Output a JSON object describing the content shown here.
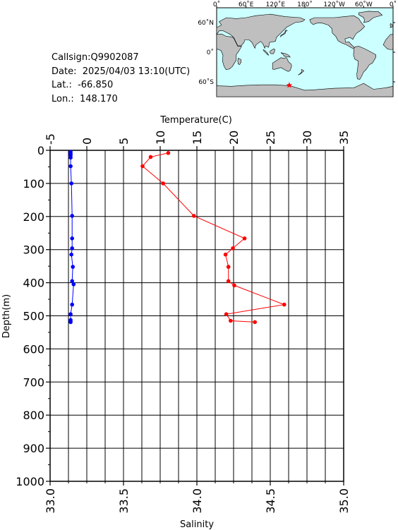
{
  "station": {
    "callsign_label": "Callsign:",
    "callsign": "Q9902087",
    "date_label": "Date:",
    "date": "2025/04/03 13:10(UTC)",
    "lat_label": "Lat.:",
    "lat": "-66.850",
    "lon_label": "Lon.:",
    "lon": "148.170"
  },
  "map": {
    "top_labels": [
      "0˚",
      "60˚E",
      "120˚E",
      "180˚",
      "120˚W",
      "60˚W",
      "0˚"
    ],
    "left_labels": [
      "60˚N",
      "0˚",
      "60˚S"
    ],
    "ocean_color": "#ccffff",
    "land_color": "#bfbfbf",
    "marker_color": "#ff0000",
    "marker_lon": 148.17,
    "marker_lat": -66.85
  },
  "chart_data": {
    "type": "line",
    "ylabel": "Depth(m)",
    "y_ticks": [
      "0",
      "100",
      "200",
      "300",
      "400",
      "500",
      "600",
      "700",
      "800",
      "900",
      "1000"
    ],
    "ylim": [
      0,
      1000
    ],
    "y_inverted": true,
    "top_axis": {
      "label": "Temperature(C)",
      "ticks": [
        "-5",
        "0",
        "5",
        "10",
        "15",
        "20",
        "25",
        "30",
        "35"
      ],
      "range": [
        -5,
        35
      ]
    },
    "bottom_axis": {
      "label": "Salinity",
      "ticks": [
        "33.0",
        "33.5",
        "34.0",
        "34.5",
        "35.0"
      ],
      "range": [
        33.0,
        35.0
      ]
    },
    "grid": true,
    "series": [
      {
        "quantity": "temperature",
        "axis": "top",
        "color": "#ff0000",
        "points": [
          {
            "x": 11.1,
            "y": 8
          },
          {
            "x": 8.7,
            "y": 20
          },
          {
            "x": 7.6,
            "y": 48
          },
          {
            "x": 10.4,
            "y": 100
          },
          {
            "x": 14.6,
            "y": 198
          },
          {
            "x": 21.5,
            "y": 266
          },
          {
            "x": 19.9,
            "y": 296
          },
          {
            "x": 18.9,
            "y": 315
          },
          {
            "x": 19.3,
            "y": 352
          },
          {
            "x": 19.3,
            "y": 395
          },
          {
            "x": 20.1,
            "y": 408
          },
          {
            "x": 26.9,
            "y": 466
          },
          {
            "x": 19.0,
            "y": 495
          },
          {
            "x": 19.6,
            "y": 515
          },
          {
            "x": 22.9,
            "y": 519
          }
        ]
      },
      {
        "quantity": "salinity",
        "axis": "bottom",
        "color": "#0000ff",
        "points": [
          {
            "x": 33.14,
            "y": 5
          },
          {
            "x": 33.14,
            "y": 10
          },
          {
            "x": 33.14,
            "y": 15
          },
          {
            "x": 33.14,
            "y": 22
          },
          {
            "x": 33.14,
            "y": 48
          },
          {
            "x": 33.145,
            "y": 100
          },
          {
            "x": 33.15,
            "y": 198
          },
          {
            "x": 33.15,
            "y": 266
          },
          {
            "x": 33.15,
            "y": 296
          },
          {
            "x": 33.145,
            "y": 315
          },
          {
            "x": 33.155,
            "y": 352
          },
          {
            "x": 33.15,
            "y": 395
          },
          {
            "x": 33.16,
            "y": 405
          },
          {
            "x": 33.15,
            "y": 466
          },
          {
            "x": 33.14,
            "y": 495
          },
          {
            "x": 33.14,
            "y": 513
          },
          {
            "x": 33.14,
            "y": 519
          }
        ]
      }
    ]
  }
}
